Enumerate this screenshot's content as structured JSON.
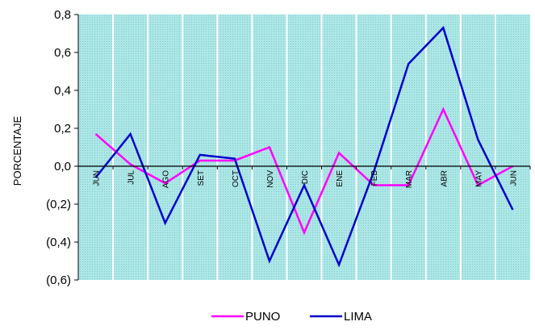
{
  "chart_data": {
    "type": "line",
    "ylabel": "PORCENTAJE",
    "categories": [
      "JUN",
      "JUL",
      "AGO",
      "SET",
      "OCT",
      "NOV",
      "DIC",
      "ENE",
      "FEB",
      "MAR",
      "ABR",
      "MAY",
      "JUN"
    ],
    "y_tick_labels": [
      "0,8",
      "0,6",
      "0,4",
      "0,2",
      "0,0",
      "(0,2)",
      "(0,4)",
      "(0,6)"
    ],
    "y_tick_values": [
      0.8,
      0.6,
      0.4,
      0.2,
      0.0,
      -0.2,
      -0.4,
      -0.6
    ],
    "ylim": [
      -0.6,
      0.8
    ],
    "grid": "vertical",
    "plot_background": "#aee6e6",
    "legend_position": "bottom",
    "series": [
      {
        "name": "PUNO",
        "color": "#ff00ff",
        "values": [
          0.17,
          0.01,
          -0.09,
          0.03,
          0.03,
          0.1,
          -0.35,
          0.07,
          -0.1,
          -0.1,
          0.3,
          -0.1,
          0.0
        ]
      },
      {
        "name": "LIMA",
        "color": "#0000cc",
        "values": [
          -0.06,
          0.17,
          -0.3,
          0.06,
          0.04,
          -0.5,
          -0.1,
          -0.52,
          -0.03,
          0.54,
          0.73,
          0.14,
          -0.23
        ]
      }
    ]
  }
}
